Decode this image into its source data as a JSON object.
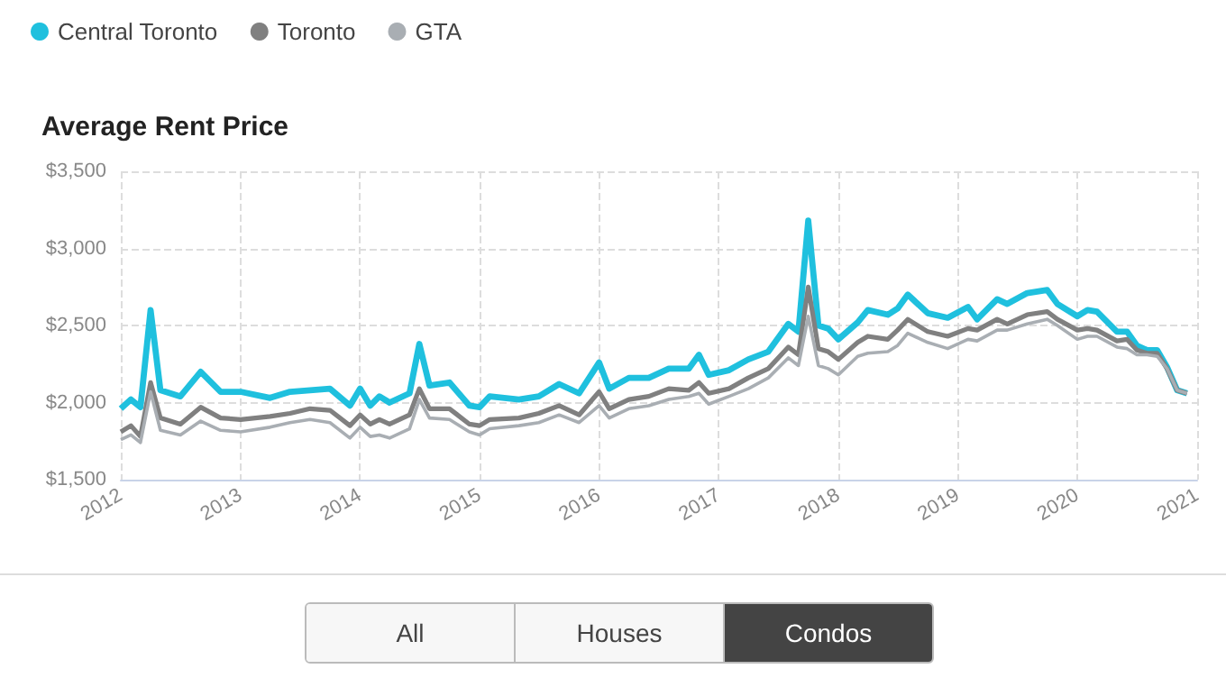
{
  "chart_data": {
    "type": "line",
    "title": "Average Rent Price",
    "x": [
      "2012-01",
      "2012-02",
      "2012-03",
      "2012-04",
      "2012-05",
      "2012-07",
      "2012-09",
      "2012-11",
      "2013-01",
      "2013-04",
      "2013-06",
      "2013-08",
      "2013-10",
      "2013-12",
      "2014-01",
      "2014-02",
      "2014-03",
      "2014-04",
      "2014-06",
      "2014-07",
      "2014-08",
      "2014-10",
      "2014-12",
      "2015-01",
      "2015-02",
      "2015-05",
      "2015-07",
      "2015-09",
      "2015-11",
      "2016-01",
      "2016-02",
      "2016-04",
      "2016-06",
      "2016-08",
      "2016-10",
      "2016-11",
      "2016-12",
      "2017-02",
      "2017-04",
      "2017-06",
      "2017-08",
      "2017-09",
      "2017-10",
      "2017-11",
      "2017-12",
      "2018-01",
      "2018-03",
      "2018-04",
      "2018-06",
      "2018-07",
      "2018-08",
      "2018-10",
      "2018-12",
      "2019-02",
      "2019-03",
      "2019-05",
      "2019-06",
      "2019-08",
      "2019-10",
      "2019-11",
      "2020-01",
      "2020-02",
      "2020-03",
      "2020-05",
      "2020-06",
      "2020-07",
      "2020-08",
      "2020-09",
      "2020-10",
      "2020-11",
      "2020-12"
    ],
    "series": [
      {
        "name": "Central Toronto",
        "color": "#1fc0de",
        "values": [
          1960,
          2020,
          1970,
          2600,
          2080,
          2040,
          2200,
          2070,
          2070,
          2030,
          2070,
          2080,
          2090,
          1980,
          2090,
          1980,
          2040,
          2000,
          2060,
          2380,
          2110,
          2130,
          1980,
          1970,
          2040,
          2020,
          2040,
          2120,
          2060,
          2260,
          2090,
          2160,
          2160,
          2220,
          2220,
          2310,
          2180,
          2210,
          2280,
          2330,
          2510,
          2460,
          3180,
          2500,
          2480,
          2410,
          2520,
          2600,
          2570,
          2610,
          2700,
          2580,
          2550,
          2620,
          2540,
          2670,
          2640,
          2710,
          2730,
          2640,
          2560,
          2600,
          2590,
          2460,
          2460,
          2370,
          2340,
          2340,
          2230,
          2080,
          2060
        ]
      },
      {
        "name": "Toronto",
        "color": "#808080",
        "values": [
          1810,
          1850,
          1780,
          2130,
          1900,
          1860,
          1970,
          1900,
          1890,
          1910,
          1930,
          1960,
          1950,
          1850,
          1920,
          1860,
          1890,
          1860,
          1920,
          2090,
          1960,
          1960,
          1860,
          1850,
          1890,
          1900,
          1930,
          1980,
          1920,
          2070,
          1960,
          2020,
          2040,
          2090,
          2080,
          2130,
          2060,
          2090,
          2160,
          2220,
          2360,
          2310,
          2750,
          2350,
          2330,
          2280,
          2390,
          2430,
          2410,
          2470,
          2540,
          2460,
          2430,
          2480,
          2470,
          2540,
          2510,
          2570,
          2590,
          2540,
          2470,
          2480,
          2470,
          2400,
          2410,
          2340,
          2320,
          2320,
          2220,
          2080,
          2060
        ]
      },
      {
        "name": "GTA",
        "color": "#a9aeb3",
        "values": [
          1760,
          1790,
          1740,
          2070,
          1820,
          1790,
          1880,
          1820,
          1810,
          1840,
          1870,
          1890,
          1870,
          1770,
          1840,
          1780,
          1790,
          1770,
          1830,
          2020,
          1900,
          1890,
          1810,
          1790,
          1830,
          1850,
          1870,
          1920,
          1870,
          1980,
          1900,
          1960,
          1980,
          2020,
          2040,
          2060,
          1990,
          2040,
          2090,
          2160,
          2290,
          2240,
          2560,
          2240,
          2220,
          2180,
          2300,
          2320,
          2330,
          2370,
          2450,
          2390,
          2350,
          2410,
          2400,
          2470,
          2470,
          2510,
          2540,
          2500,
          2410,
          2430,
          2430,
          2360,
          2350,
          2310,
          2310,
          2300,
          2220,
          2080,
          2060
        ]
      }
    ],
    "xlim": [
      "2012-01",
      "2021-01"
    ],
    "xticks": [
      "2012",
      "2013",
      "2014",
      "2015",
      "2016",
      "2017",
      "2018",
      "2019",
      "2020",
      "2021"
    ],
    "ylim": [
      1500,
      3500
    ],
    "yticks": [
      {
        "value": 1500,
        "label": "$1,500"
      },
      {
        "value": 2000,
        "label": "$2,000"
      },
      {
        "value": 2500,
        "label": "$2,500"
      },
      {
        "value": 3000,
        "label": "$3,000"
      },
      {
        "value": 3500,
        "label": "$3,500"
      }
    ],
    "grid": true,
    "legend": "top left",
    "marker": "none",
    "line_style": "solid",
    "annotations": [
      "All",
      "Houses",
      "Condos"
    ]
  }
}
